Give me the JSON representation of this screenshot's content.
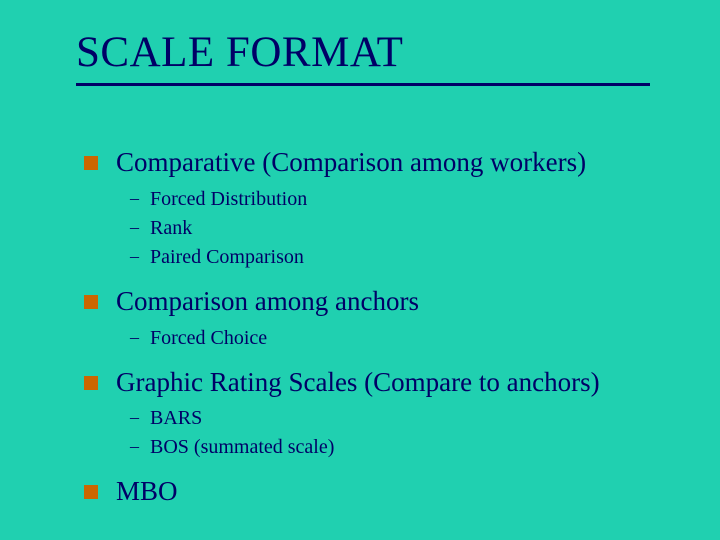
{
  "slide": {
    "title": "SCALE FORMAT",
    "background_color": "#20d0b0",
    "text_color": "#000066",
    "bullet_color": "#cc6600",
    "title_fontsize": 43,
    "level1_fontsize": 27,
    "level2_fontsize": 20,
    "items": [
      {
        "text": "Comparative (Comparison among workers)",
        "sub": [
          "Forced Distribution",
          "Rank",
          "Paired Comparison"
        ]
      },
      {
        "text": "Comparison among anchors",
        "sub": [
          "Forced Choice"
        ]
      },
      {
        "text": "Graphic Rating Scales (Compare to anchors)",
        "sub": [
          "BARS",
          "BOS (summated scale)"
        ]
      },
      {
        "text": "MBO",
        "sub": []
      }
    ]
  }
}
